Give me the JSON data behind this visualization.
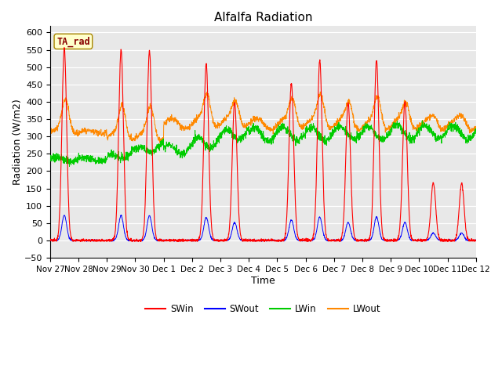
{
  "title": "Alfalfa Radiation",
  "xlabel": "Time",
  "ylabel": "Radiation (W/m2)",
  "ylim": [
    -50,
    620
  ],
  "yticks": [
    -50,
    0,
    50,
    100,
    150,
    200,
    250,
    300,
    350,
    400,
    450,
    500,
    550,
    600
  ],
  "tick_labels": [
    "Nov 27",
    "Nov 28",
    "Nov 29",
    "Nov 30",
    "Dec 1",
    "Dec 2",
    "Dec 3",
    "Dec 4",
    "Dec 5",
    "Dec 6",
    "Dec 7",
    "Dec 8",
    "Dec 9",
    "Dec 10",
    "Dec 11",
    "Dec 12"
  ],
  "annotation_text": "TA_rad",
  "annotation_bg": "#FFFFCC",
  "annotation_border": "#AA8800",
  "annotation_text_color": "#880000",
  "colors": {
    "SWin": "#FF0000",
    "SWout": "#0000FF",
    "LWin": "#00CC00",
    "LWout": "#FF8800"
  },
  "plot_bg": "#E8E8E8",
  "title_fontsize": 11,
  "axis_fontsize": 9,
  "tick_fontsize": 8
}
